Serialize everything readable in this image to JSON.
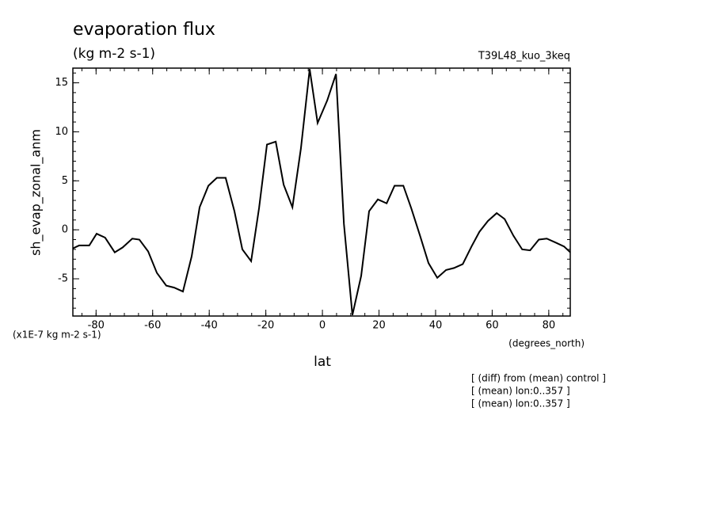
{
  "chart_data": {
    "type": "line",
    "title": "evaporation flux",
    "subtitle": "(kg m-2 s-1)",
    "experiment": "T39L48_kuo_3keq",
    "y_label": "sh_evap_zonal_anm",
    "y_scale_label": "(x1E-7 kg m-2 s-1)",
    "x_label": "lat",
    "x_unit_label": "(degrees_north)",
    "notes": [
      "[ (diff) from (mean) control ]",
      "[ (mean) lon:0..357 ]",
      "[ (mean) lon:0..357 ]"
    ],
    "xlim": [
      -88.2,
      87.6
    ],
    "xticks": [
      -80,
      -60,
      -40,
      -20,
      0,
      20,
      40,
      60,
      80
    ],
    "ylim": [
      -8.8,
      16.5
    ],
    "yticks": [
      -5,
      0,
      5,
      10,
      15
    ],
    "color": "#000000",
    "x": [
      -88.2,
      -86.0,
      -82.4,
      -79.8,
      -76.8,
      -73.4,
      -70.6,
      -67.2,
      -64.7,
      -61.6,
      -58.5,
      -55.2,
      -52.4,
      -49.3,
      -46.2,
      -43.4,
      -40.3,
      -37.3,
      -34.2,
      -31.1,
      -28.3,
      -25.2,
      -22.4,
      -19.6,
      -16.5,
      -13.7,
      -10.6,
      -7.6,
      -4.5,
      -1.7,
      1.7,
      4.8,
      7.6,
      10.6,
      13.7,
      16.5,
      19.6,
      22.7,
      25.5,
      28.6,
      31.4,
      34.5,
      37.5,
      40.6,
      43.7,
      46.5,
      49.6,
      52.7,
      55.5,
      58.5,
      61.6,
      64.4,
      67.5,
      70.6,
      73.4,
      76.5,
      79.3,
      82.4,
      85.4,
      87.6
    ],
    "values": [
      -1.9,
      -1.6,
      -1.6,
      -0.4,
      -0.8,
      -2.3,
      -1.8,
      -0.9,
      -1.0,
      -2.2,
      -4.4,
      -5.7,
      -5.9,
      -6.3,
      -2.7,
      2.3,
      4.5,
      5.3,
      5.3,
      1.9,
      -2.0,
      -3.2,
      2.2,
      8.7,
      9.0,
      4.6,
      2.3,
      8.3,
      16.4,
      10.9,
      13.2,
      15.9,
      0.6,
      -8.7,
      -4.7,
      1.9,
      3.1,
      2.7,
      4.5,
      4.5,
      2.2,
      -0.6,
      -3.4,
      -4.9,
      -4.1,
      -3.9,
      -3.5,
      -1.7,
      -0.2,
      0.9,
      1.7,
      1.1,
      -0.6,
      -2.0,
      -2.1,
      -1.0,
      -0.9,
      -1.3,
      -1.7,
      -2.3
    ]
  }
}
